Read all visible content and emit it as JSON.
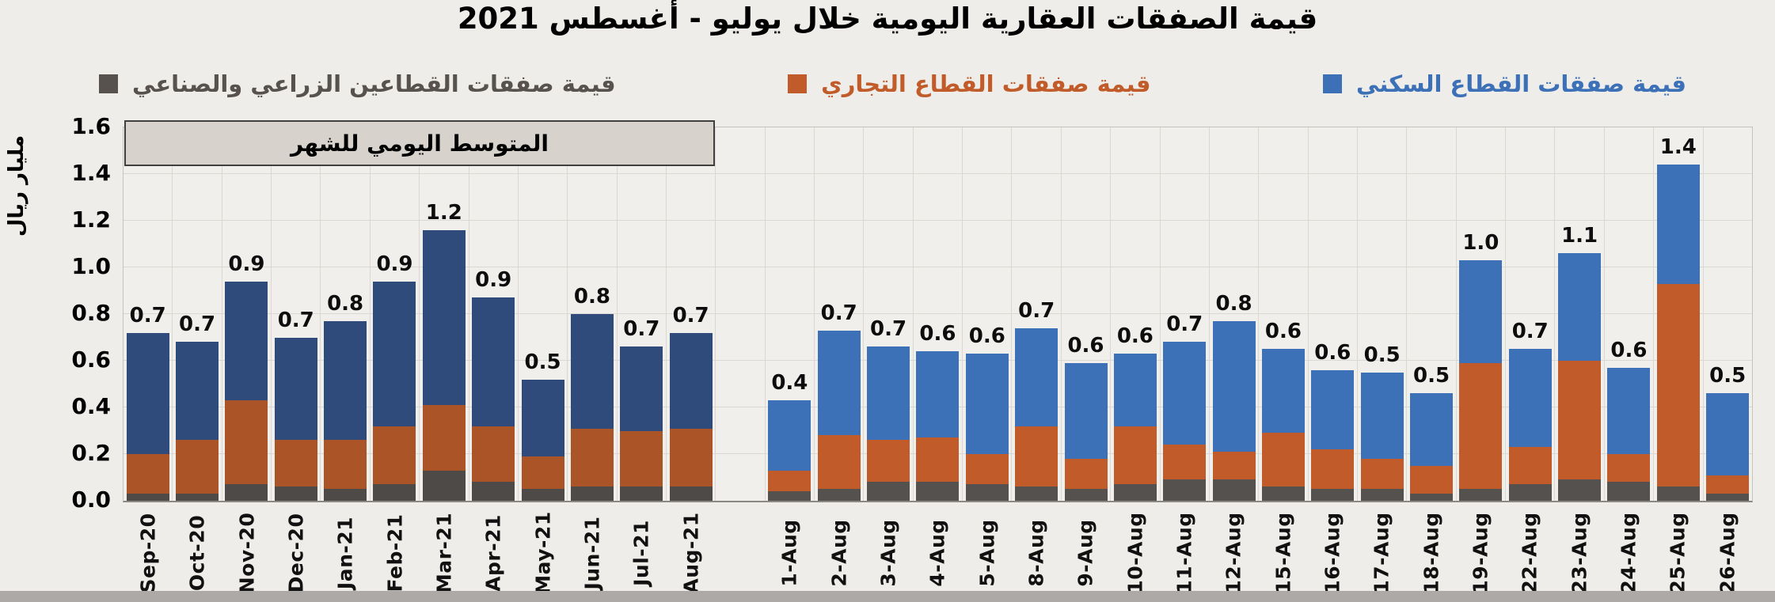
{
  "title": "قيمة الصفقات العقارية اليومية خلال يوليو - أغسطس 2021",
  "legend": {
    "items": [
      {
        "id": "agri_industrial",
        "label": "قيمة صفقات القطاعين الزراعي والصناعي",
        "swatch_color": "#57524E",
        "text_color": "#57524E"
      },
      {
        "id": "commercial",
        "label": "قيمة صفقات القطاع التجاري",
        "swatch_color": "#C15C2A",
        "text_color": "#C15C2A"
      },
      {
        "id": "residential",
        "label": "قيمة صفقات القطاع السكني",
        "swatch_color": "#3C70B7",
        "text_color": "#3C70B7"
      }
    ]
  },
  "annotation_box_label": "المتوسط اليومي للشهر",
  "y_axis": {
    "title": "مليار ريال",
    "ticks": [
      "0.0",
      "0.2",
      "0.4",
      "0.6",
      "0.8",
      "1.0",
      "1.2",
      "1.4",
      "1.6"
    ],
    "max": 1.6
  },
  "chart_data": {
    "type": "bar",
    "stacked": true,
    "title": "قيمة الصفقات العقارية اليومية خلال يوليو - أغسطس 2021",
    "ylabel": "مليار ريال",
    "ylim": [
      0,
      1.6
    ],
    "grid": true,
    "legend_position": "top",
    "series_order_bottom_to_top": [
      "agri_industrial",
      "commercial",
      "residential"
    ],
    "groups": [
      {
        "name": "monthly_daily_average",
        "annotation": "المتوسط اليومي للشهر",
        "categories": [
          "Sep-20",
          "Oct-20",
          "Nov-20",
          "Dec-20",
          "Jan-21",
          "Feb-21",
          "Mar-21",
          "Apr-21",
          "May-21",
          "Jun-21",
          "Jul-21",
          "Aug-21"
        ],
        "totals": [
          0.7,
          0.7,
          0.9,
          0.7,
          0.8,
          0.9,
          1.2,
          0.9,
          0.5,
          0.8,
          0.7,
          0.7
        ],
        "series": [
          {
            "name": "agri_industrial",
            "values": [
              0.03,
              0.03,
              0.07,
              0.06,
              0.05,
              0.07,
              0.13,
              0.08,
              0.05,
              0.06,
              0.06,
              0.06
            ]
          },
          {
            "name": "commercial",
            "values": [
              0.17,
              0.23,
              0.36,
              0.2,
              0.21,
              0.25,
              0.28,
              0.24,
              0.14,
              0.25,
              0.24,
              0.25
            ]
          },
          {
            "name": "residential",
            "values": [
              0.52,
              0.42,
              0.51,
              0.44,
              0.51,
              0.62,
              0.75,
              0.55,
              0.33,
              0.49,
              0.36,
              0.41
            ]
          }
        ],
        "colors": {
          "residential": "#2F4B7C",
          "commercial": "#AA5428",
          "agri_industrial": "#4E4A47"
        }
      },
      {
        "name": "daily_august",
        "categories": [
          "1-Aug",
          "2-Aug",
          "3-Aug",
          "4-Aug",
          "5-Aug",
          "8-Aug",
          "9-Aug",
          "10-Aug",
          "11-Aug",
          "12-Aug",
          "15-Aug",
          "16-Aug",
          "17-Aug",
          "18-Aug",
          "19-Aug",
          "22-Aug",
          "23-Aug",
          "24-Aug",
          "25-Aug",
          "26-Aug"
        ],
        "totals": [
          0.4,
          0.7,
          0.7,
          0.6,
          0.6,
          0.7,
          0.6,
          0.6,
          0.7,
          0.8,
          0.6,
          0.6,
          0.5,
          0.5,
          1.0,
          0.7,
          1.1,
          0.6,
          1.4,
          0.5
        ],
        "series": [
          {
            "name": "agri_industrial",
            "values": [
              0.04,
              0.05,
              0.08,
              0.08,
              0.07,
              0.06,
              0.05,
              0.07,
              0.09,
              0.09,
              0.06,
              0.05,
              0.05,
              0.03,
              0.05,
              0.07,
              0.09,
              0.08,
              0.06,
              0.03
            ]
          },
          {
            "name": "commercial",
            "values": [
              0.09,
              0.23,
              0.18,
              0.19,
              0.13,
              0.26,
              0.13,
              0.25,
              0.15,
              0.12,
              0.23,
              0.17,
              0.13,
              0.12,
              0.54,
              0.16,
              0.51,
              0.12,
              0.87,
              0.08
            ]
          },
          {
            "name": "residential",
            "values": [
              0.3,
              0.45,
              0.4,
              0.37,
              0.43,
              0.42,
              0.41,
              0.31,
              0.44,
              0.56,
              0.36,
              0.34,
              0.37,
              0.31,
              0.44,
              0.42,
              0.46,
              0.37,
              0.51,
              0.35
            ]
          }
        ],
        "colors": {
          "residential": "#3C70B7",
          "commercial": "#C15C2A",
          "agri_industrial": "#55514E"
        }
      }
    ]
  }
}
